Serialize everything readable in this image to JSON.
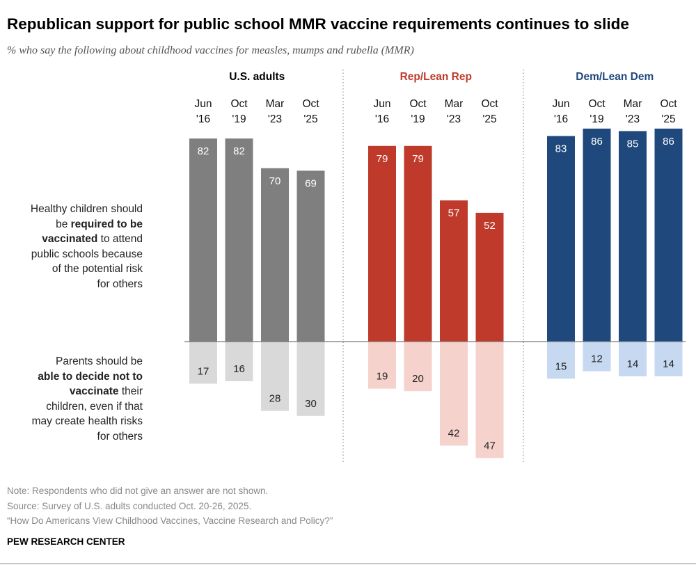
{
  "title": "Republican support for public school MMR vaccine requirements continues to slide",
  "subtitle": "% who say the following about childhood vaccines for measles, mumps and rubella (MMR)",
  "row_labels": {
    "required": [
      "Healthy children should",
      "be ",
      "required to be",
      "vaccinated",
      " to attend",
      "public schools because",
      "of the potential risk",
      "for others"
    ],
    "decide": [
      "Parents should be",
      "able to decide not to",
      "vaccinate",
      " their",
      "children, even if that",
      "may create health risks",
      "for others"
    ]
  },
  "notes": [
    "Note: Respondents who did not give an answer are not shown.",
    "Source: Survey of U.S. adults conducted Oct. 20-26, 2025.",
    "“How Do Americans View Childhood Vaccines, Vaccine Research and Policy?”"
  ],
  "brand": "PEW RESEARCH CENTER",
  "chart_data": {
    "type": "bar",
    "categories": [
      [
        "Jun",
        "'16"
      ],
      [
        "Oct",
        "'19"
      ],
      [
        "Mar",
        "'23"
      ],
      [
        "Oct",
        "'25"
      ]
    ],
    "groups": [
      {
        "name": "U.S. adults",
        "color": "#7f7f7f",
        "light": "#d9d9d9",
        "label_color": "#000000",
        "required": [
          82,
          82,
          70,
          69
        ],
        "decide": [
          17,
          16,
          28,
          30
        ]
      },
      {
        "name": "Rep/Lean Rep",
        "color": "#bf3a2b",
        "light": "#f6d2cd",
        "label_color": "#bf3a2b",
        "required": [
          79,
          79,
          57,
          52
        ],
        "decide": [
          19,
          20,
          42,
          47
        ]
      },
      {
        "name": "Dem/Lean Dem",
        "color": "#1f497d",
        "light": "#c6d9f1",
        "label_color": "#1f497d",
        "required": [
          83,
          86,
          85,
          86
        ],
        "decide": [
          15,
          12,
          14,
          14
        ]
      }
    ]
  }
}
